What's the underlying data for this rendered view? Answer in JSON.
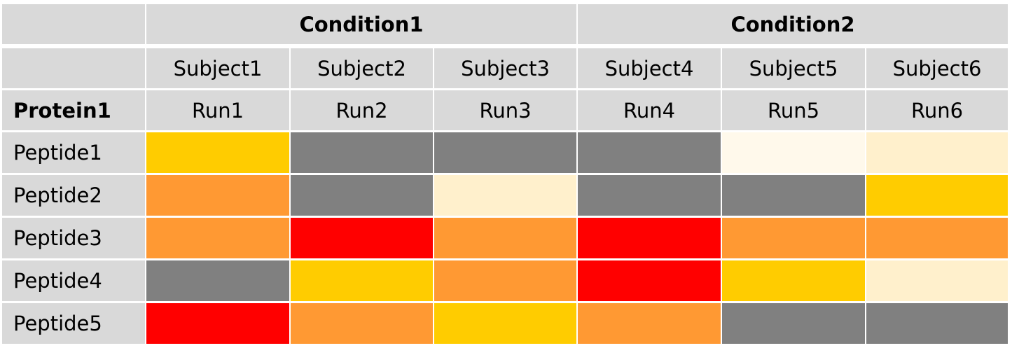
{
  "chart_data": {
    "type": "heatmap",
    "title": "",
    "protein_label": "Protein1",
    "conditions": [
      {
        "label": "Condition1",
        "span": 3
      },
      {
        "label": "Condition2",
        "span": 3
      }
    ],
    "subjects": [
      "Subject1",
      "Subject2",
      "Subject3",
      "Subject4",
      "Subject5",
      "Subject6"
    ],
    "runs": [
      "Run1",
      "Run2",
      "Run3",
      "Run4",
      "Run5",
      "Run6"
    ],
    "rows": [
      "Peptide1",
      "Peptide2",
      "Peptide3",
      "Peptide4",
      "Peptide5"
    ],
    "levels": {
      "missing": "#808080",
      "very_low": "#fff9eb",
      "low": "#fff0cc",
      "medium": "#ffcc00",
      "high": "#ff9933",
      "very_high": "#ff0000"
    },
    "values": [
      [
        "medium",
        "missing",
        "missing",
        "missing",
        "very_low",
        "low"
      ],
      [
        "high",
        "missing",
        "low",
        "missing",
        "missing",
        "medium"
      ],
      [
        "high",
        "very_high",
        "high",
        "very_high",
        "high",
        "high"
      ],
      [
        "missing",
        "medium",
        "high",
        "very_high",
        "medium",
        "low"
      ],
      [
        "very_high",
        "high",
        "medium",
        "high",
        "missing",
        "missing"
      ]
    ],
    "header_color": "#d9d9d9",
    "grid": true
  }
}
